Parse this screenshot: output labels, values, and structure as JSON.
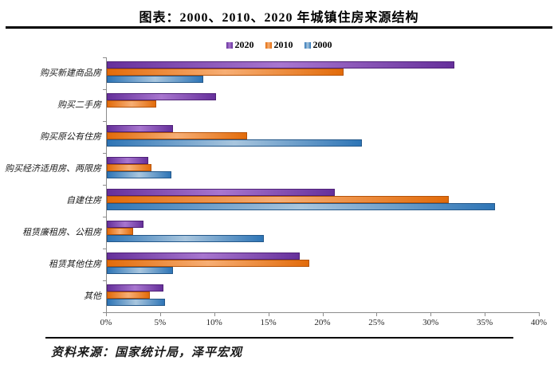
{
  "page": {
    "title": "图表：2000、2010、2020 年城镇住房来源结构",
    "source_note": "资料来源：国家统计局，泽平宏观"
  },
  "chart_data": {
    "type": "bar",
    "orientation": "horizontal",
    "title": "图表：2000、2010、2020 年城镇住房来源结构",
    "categories": [
      "购买新建商品房",
      "购买二手房",
      "购买原公有住房",
      "购买经济适用房、两限房",
      "自建住房",
      "租赁廉租房、公租房",
      "租赁其他住房",
      "其他"
    ],
    "series": [
      {
        "name": "2020",
        "color": "#66309B",
        "color_light": "#A876CF",
        "border": "#4F2178",
        "values": [
          32.1,
          10.1,
          6.1,
          3.8,
          21.1,
          3.4,
          17.8,
          5.2
        ]
      },
      {
        "name": "2010",
        "color": "#E26B0A",
        "color_light": "#F7AE74",
        "border": "#B55309",
        "values": [
          21.9,
          4.6,
          13.0,
          4.1,
          31.6,
          2.4,
          18.7,
          4.0
        ]
      },
      {
        "name": "2000",
        "color": "#2E75B6",
        "color_light": "#A9C6DE",
        "border": "#24588A",
        "values": [
          8.9,
          0,
          23.6,
          6.0,
          35.9,
          14.5,
          6.1,
          5.4
        ]
      }
    ],
    "xlim": [
      0,
      40
    ],
    "x_ticks": [
      "0%",
      "5%",
      "10%",
      "15%",
      "20%",
      "25%",
      "30%",
      "35%",
      "40%"
    ],
    "legend_position": "top",
    "grid": false
  }
}
